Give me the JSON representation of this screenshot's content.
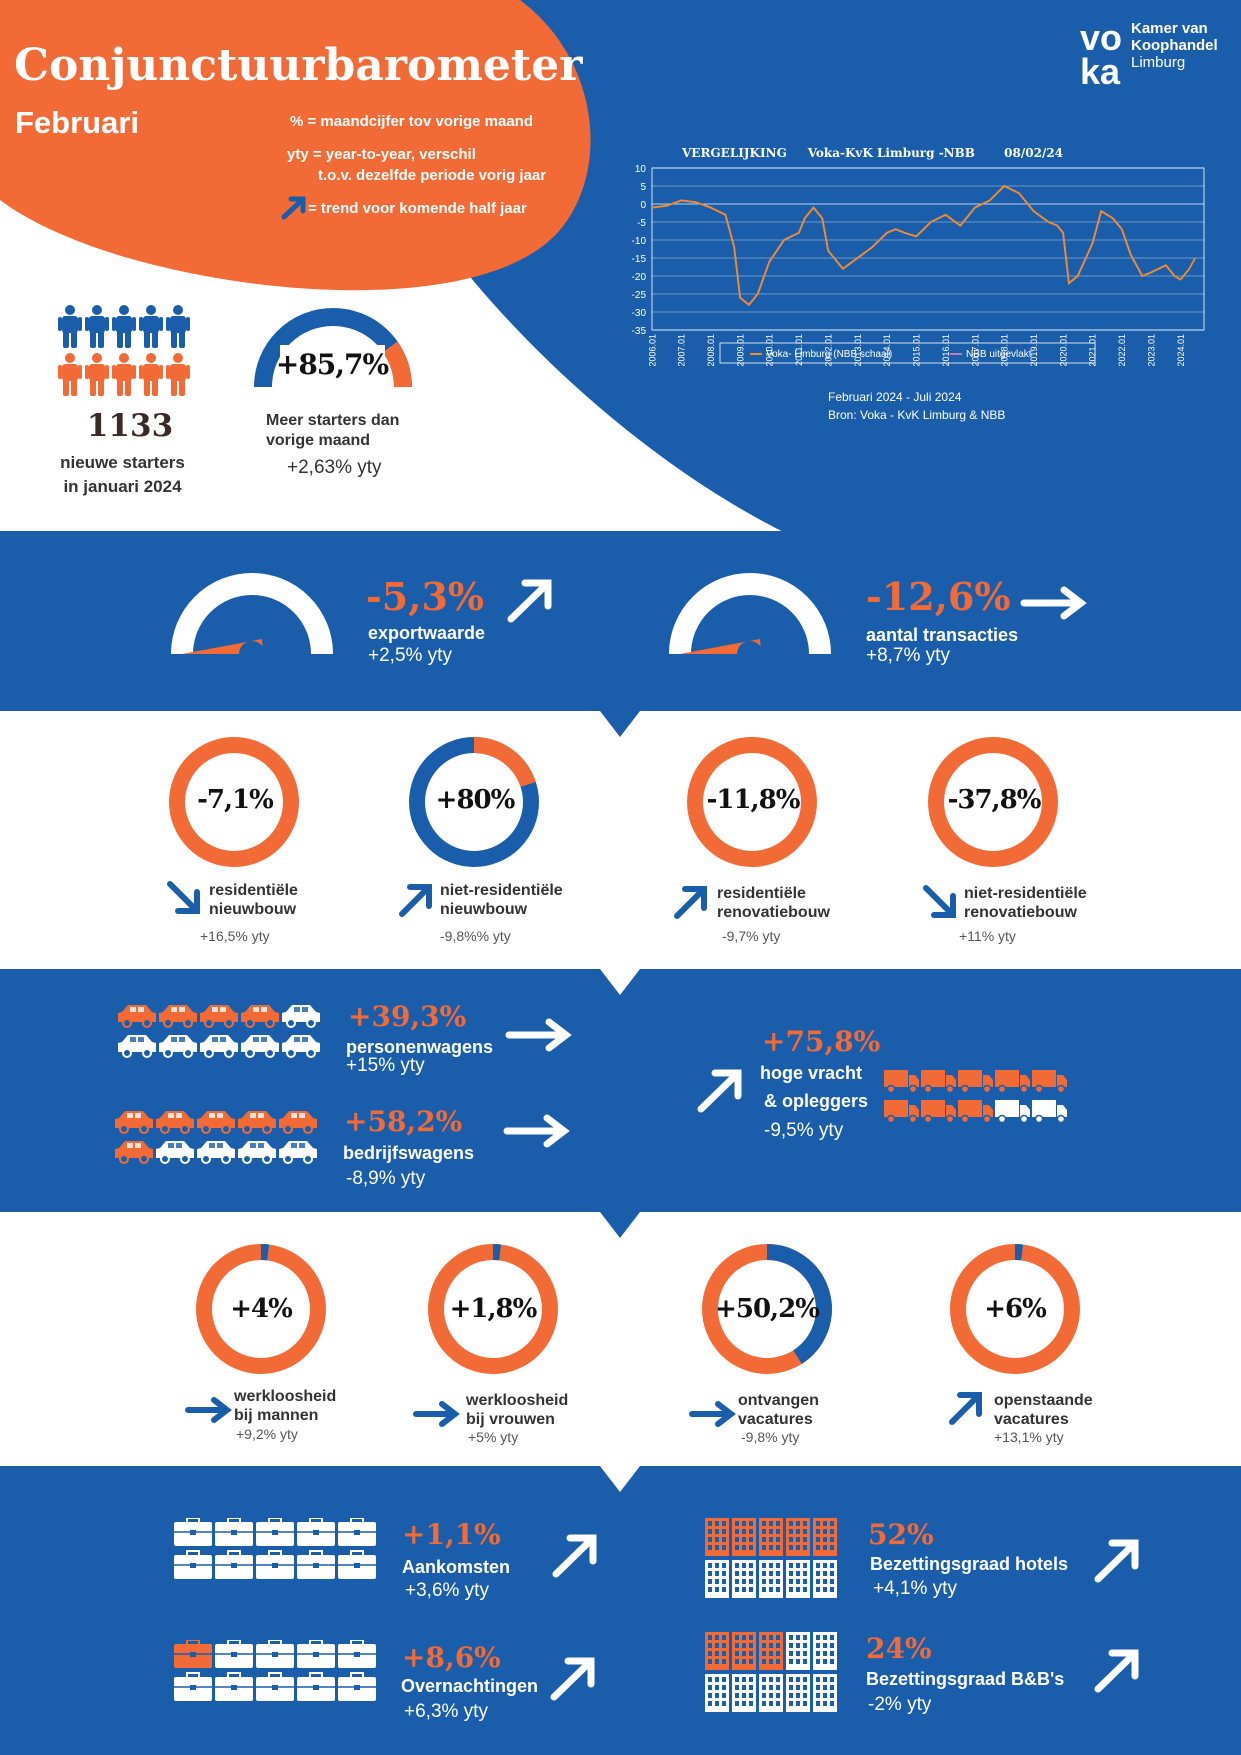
{
  "header": {
    "title": "Conjunctuurbarometer",
    "month": "Februari",
    "legend_pct": "% = maandcijfer tov vorige maand",
    "legend_yty_1": "yty  = year-to-year,  verschil",
    "legend_yty_2": "t.o.v. dezelfde periode vorig jaar",
    "legend_trend": "= trend voor komende  half jaar"
  },
  "logo": {
    "mark": "voka",
    "line1": "Kamer van",
    "line2": "Koophandel",
    "line3": "Limburg"
  },
  "starters": {
    "count": "1133",
    "label_1": "nieuwe starters",
    "label_2": "in januari 2024",
    "gauge_value": "+85,7%",
    "gauge_label_1": "Meer  starters dan",
    "gauge_label_2": "vorige maand",
    "yty": "+2,63% yty"
  },
  "chart_data": {
    "type": "line",
    "title": "VERGELIJKING     Voka-KvK Limburg -NBB       08/02/24",
    "ylim": [
      -35,
      10
    ],
    "yticks": [
      "10",
      "5",
      "0",
      "-5",
      "-10",
      "-15",
      "-20",
      "-25",
      "-30",
      "-35"
    ],
    "xticks": [
      "2006.01",
      "2007.01",
      "2008.01",
      "2009.01",
      "2010.01",
      "2011.01",
      "2012.01",
      "2013.01",
      "2014.01",
      "2015.01",
      "2016.01",
      "2017.01",
      "2018.01",
      "2019.01",
      "2020.01",
      "2021.01",
      "2022.01",
      "2023.01",
      "2024.01"
    ],
    "x": [
      2006.0,
      2006.5,
      2007.0,
      2007.5,
      2008.0,
      2008.5,
      2008.8,
      2009.0,
      2009.3,
      2009.6,
      2010.0,
      2010.5,
      2011.0,
      2011.2,
      2011.5,
      2011.8,
      2012.0,
      2012.5,
      2013.0,
      2013.5,
      2014.0,
      2014.3,
      2014.6,
      2015.0,
      2015.5,
      2016.0,
      2016.5,
      2017.0,
      2017.5,
      2018.0,
      2018.5,
      2019.0,
      2019.5,
      2019.8,
      2020.0,
      2020.2,
      2020.5,
      2021.0,
      2021.3,
      2021.7,
      2022.0,
      2022.3,
      2022.7,
      2023.0,
      2023.5,
      2023.8,
      2024.0,
      2024.3,
      2024.5
    ],
    "series": [
      {
        "name": "Voka- Limburg (NBB schaal)",
        "color": "#f28c28",
        "values": [
          -1,
          -0.5,
          1,
          0.5,
          -1,
          -3,
          -12,
          -26,
          -28,
          -25,
          -16,
          -10,
          -8,
          -4,
          -1,
          -4,
          -13,
          -18,
          -15,
          -12,
          -8,
          -7,
          -8,
          -9,
          -5,
          -3,
          -6,
          -1,
          1,
          5,
          3,
          -2,
          -5,
          -6,
          -8,
          -22,
          -20,
          -11,
          -2,
          -4,
          -7,
          -14,
          -20,
          -19,
          -17,
          -20,
          -21,
          -18,
          -15
        ]
      },
      {
        "name": "NBB  uitgevlakt",
        "color": "#c47ab8",
        "values": [
          -1,
          -0.5,
          1,
          0.5,
          -1,
          -3,
          -12,
          -26,
          -28,
          -25,
          -16,
          -10,
          -8,
          -4,
          -1,
          -4,
          -13,
          -18,
          -15,
          -12,
          -8,
          -7,
          -8,
          -9,
          -5,
          -3,
          -6,
          -1,
          1,
          5,
          3,
          -2,
          -5,
          -6,
          -8,
          -22,
          -20,
          -11,
          -2,
          -4,
          -7,
          -14,
          -20,
          -19,
          -17,
          -20,
          null,
          null,
          null
        ]
      }
    ],
    "period": "Februari 2024 - Juli 2024",
    "source": "Bron: Voka - KvK Limburg & NBB"
  },
  "export": {
    "value": "-5,3%",
    "label": "exportwaarde",
    "yty": "+2,5% yty"
  },
  "transacties": {
    "value": "-12,6%",
    "label": "aantal transacties",
    "yty": "+8,7% yty"
  },
  "bouw": [
    {
      "value": "-7,1%",
      "label_1": "residentiële",
      "label_2": "nieuwbouw",
      "yty": "+16,5% yty"
    },
    {
      "value": "+80%",
      "label_1": "niet-residentiële",
      "label_2": "nieuwbouw",
      "yty": "-9,8%% yty"
    },
    {
      "value": "-11,8%",
      "label_1": "residentiële",
      "label_2": "renovatiebouw",
      "yty": "-9,7% yty"
    },
    {
      "value": "-37,8%",
      "label_1": "niet-residentiële",
      "label_2": "renovatiebouw",
      "yty": "+11% yty"
    }
  ],
  "voertuigen": {
    "personen": {
      "value": "+39,3%",
      "label": "personenwagens",
      "yty": "+15% yty"
    },
    "bedrijf": {
      "value": "+58,2%",
      "label": "bedrijfswagens",
      "yty": "-8,9% yty"
    },
    "vracht": {
      "value": "+75,8%",
      "label_1": "hoge vracht",
      "label_2": "& opleggers",
      "yty": "-9,5% yty"
    }
  },
  "arbeid": [
    {
      "value": "+4%",
      "label_1": "werkloosheid",
      "label_2": "bij mannen",
      "yty": "+9,2% yty"
    },
    {
      "value": "+1,8%",
      "label_1": "werkloosheid",
      "label_2": "bij vrouwen",
      "yty": "+5% yty"
    },
    {
      "value": "+50,2%",
      "label_1": "ontvangen",
      "label_2": "vacatures",
      "yty": "-9,8% yty"
    },
    {
      "value": "+6%",
      "label_1": "openstaande",
      "label_2": "vacatures",
      "yty": "+13,1% yty"
    }
  ],
  "toerisme": {
    "aankomsten": {
      "value": "+1,1%",
      "label": "Aankomsten",
      "yty": "+3,6% yty"
    },
    "overnachtingen": {
      "value": "+8,6%",
      "label": "Overnachtingen",
      "yty": "+6,3% yty"
    },
    "hotels": {
      "value": "52%",
      "label": "Bezettingsgraad hotels",
      "yty": "+4,1% yty"
    },
    "bnb": {
      "value": "24%",
      "label": "Bezettingsgraad B&B's",
      "yty": "-2% yty"
    }
  },
  "colors": {
    "blue": "#1a5eab",
    "orange": "#f26a35",
    "white": "#ffffff"
  }
}
